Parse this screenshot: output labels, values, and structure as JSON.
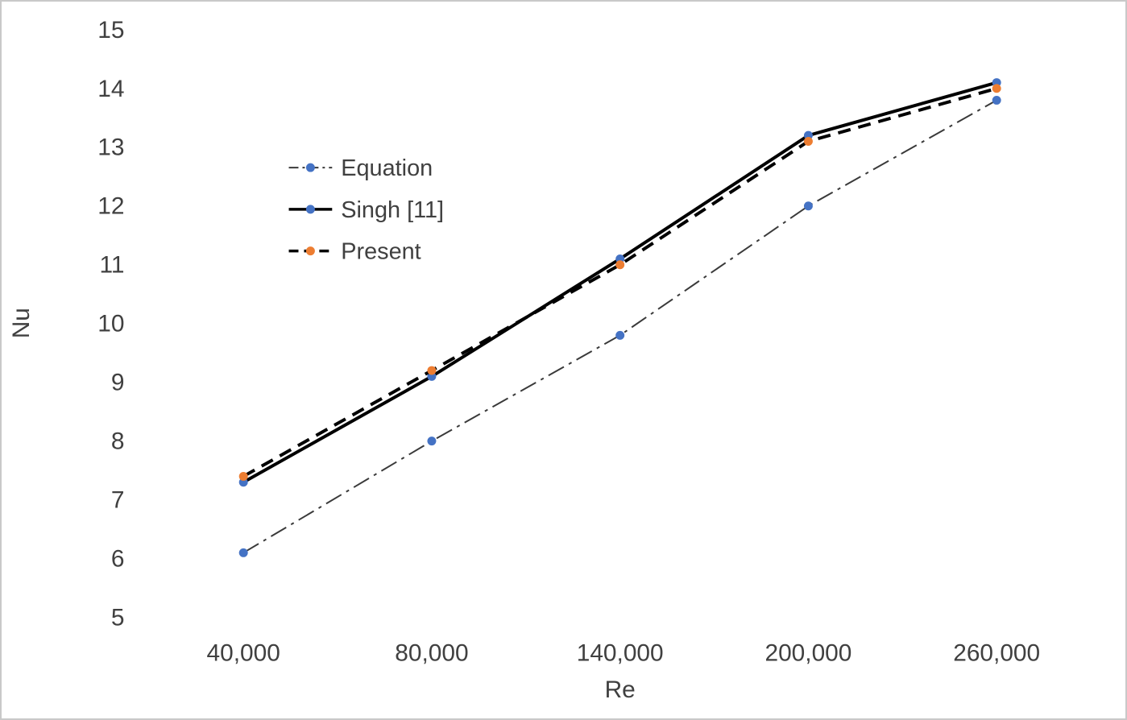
{
  "chart_data": {
    "type": "line",
    "title": "",
    "xlabel": "Re",
    "ylabel": "Nu",
    "categories": [
      "40,000",
      "80,000",
      "140,000",
      "200,000",
      "260,000"
    ],
    "series": [
      {
        "name": "Equation",
        "values": [
          6.1,
          8.0,
          9.8,
          12.0,
          13.8
        ],
        "line_color": "#3a3a3a",
        "line_style": "dashdot",
        "marker_color": "#4472C4"
      },
      {
        "name": "Singh [11]",
        "values": [
          7.3,
          9.1,
          11.1,
          13.2,
          14.1
        ],
        "line_color": "#000000",
        "line_style": "solid",
        "marker_color": "#4472C4"
      },
      {
        "name": "Present",
        "values": [
          7.4,
          9.2,
          11.0,
          13.1,
          14.0
        ],
        "line_color": "#000000",
        "line_style": "dashed",
        "marker_color": "#ED7D31"
      }
    ],
    "ylim": [
      5,
      15
    ],
    "ytick_step": 1,
    "grid": false,
    "legend_position": "inside-upper-left"
  },
  "colors": {
    "text": "#404040",
    "background": "#ffffff",
    "border": "#c9c9c9",
    "marker_blue": "#4472C4",
    "marker_orange": "#ED7D31"
  }
}
